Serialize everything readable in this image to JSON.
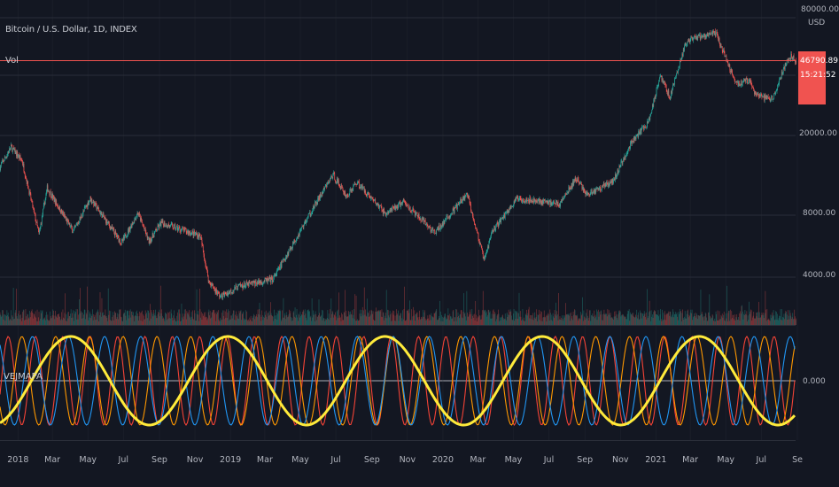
{
  "header": {
    "symbol_title": "Bitcoin / U.S. Dollar, 1D, INDEX",
    "volume_label": "Vol",
    "indicator_label": "VEJMAPA"
  },
  "price_scale": {
    "currency": "USD",
    "ticks": [
      "80000.00",
      "20000.00",
      "8000.00",
      "4000.00"
    ],
    "last_price": "46790.89",
    "countdown": "15:21:52"
  },
  "osc_scale": {
    "ticks": [
      "0.000"
    ]
  },
  "colors": {
    "background": "#131722",
    "grid": "#2a2e39",
    "up": "#26a69a",
    "down": "#ef5350",
    "price_line": "#f05350",
    "osc_yellow": "#ffeb3b",
    "osc_blue": "#2196f3",
    "osc_orange": "#ff9800",
    "osc_red": "#f44336",
    "zero_line": "#d1d4dc"
  },
  "chart_data": [
    {
      "type": "candlestick",
      "title": "Bitcoin / U.S. Dollar, 1D, INDEX",
      "yscale": "log",
      "ylim": [
        2500,
        80000
      ],
      "ylabel": "USD",
      "x_ticks": [
        "2018",
        "Mar",
        "May",
        "Jul",
        "Sep",
        "Nov",
        "2019",
        "Mar",
        "May",
        "Jul",
        "Sep",
        "Nov",
        "2020",
        "Mar",
        "May",
        "Jul",
        "Sep",
        "Nov",
        "2021",
        "Mar",
        "May",
        "Jul",
        "Se"
      ],
      "x_tick_dates": [
        "2018-01",
        "2018-03",
        "2018-05",
        "2018-07",
        "2018-09",
        "2018-11",
        "2019-01",
        "2019-03",
        "2019-05",
        "2019-07",
        "2019-09",
        "2019-11",
        "2020-01",
        "2020-03",
        "2020-05",
        "2020-07",
        "2020-09",
        "2020-11",
        "2021-01",
        "2021-03",
        "2021-05",
        "2021-07",
        "2021-09"
      ],
      "price_path": [
        [
          "2017-12-01",
          14000
        ],
        [
          "2017-12-20",
          17500
        ],
        [
          "2018-01-08",
          15000
        ],
        [
          "2018-02-06",
          6500
        ],
        [
          "2018-02-20",
          11000
        ],
        [
          "2018-04-06",
          6700
        ],
        [
          "2018-05-05",
          9800
        ],
        [
          "2018-06-28",
          5900
        ],
        [
          "2018-07-26",
          8300
        ],
        [
          "2018-08-14",
          6000
        ],
        [
          "2018-09-04",
          7400
        ],
        [
          "2018-11-10",
          6400
        ],
        [
          "2018-11-25",
          3800
        ],
        [
          "2018-12-15",
          3200
        ],
        [
          "2019-01-15",
          3600
        ],
        [
          "2019-03-15",
          3900
        ],
        [
          "2019-04-05",
          5000
        ],
        [
          "2019-05-15",
          8000
        ],
        [
          "2019-06-26",
          12800
        ],
        [
          "2019-07-20",
          10000
        ],
        [
          "2019-08-06",
          11800
        ],
        [
          "2019-09-25",
          8200
        ],
        [
          "2019-10-25",
          9400
        ],
        [
          "2019-12-18",
          6600
        ],
        [
          "2020-02-12",
          10300
        ],
        [
          "2020-03-12",
          4800
        ],
        [
          "2020-03-25",
          6700
        ],
        [
          "2020-05-08",
          9800
        ],
        [
          "2020-07-20",
          9200
        ],
        [
          "2020-08-17",
          12300
        ],
        [
          "2020-09-05",
          10200
        ],
        [
          "2020-10-20",
          12000
        ],
        [
          "2020-11-20",
          18500
        ],
        [
          "2020-12-20",
          23500
        ],
        [
          "2021-01-08",
          40000
        ],
        [
          "2021-01-25",
          31000
        ],
        [
          "2021-02-21",
          57000
        ],
        [
          "2021-03-13",
          61000
        ],
        [
          "2021-04-14",
          64000
        ],
        [
          "2021-05-19",
          36000
        ],
        [
          "2021-06-10",
          37500
        ],
        [
          "2021-06-22",
          31500
        ],
        [
          "2021-07-20",
          30000
        ],
        [
          "2021-08-14",
          47000
        ],
        [
          "2021-08-22",
          49500
        ],
        [
          "2021-08-30",
          46790
        ]
      ],
      "last_price": 46790.89
    },
    {
      "type": "line",
      "name": "VEJMAPA",
      "zero_line": 0.0,
      "ylim": [
        -1,
        1
      ],
      "series": [
        {
          "color": "#ffeb3b",
          "period_days": 270
        },
        {
          "color": "#2196f3",
          "period_days": 62
        },
        {
          "color": "#ff9800",
          "period_days": 58
        },
        {
          "color": "#f44336",
          "period_days": 47
        }
      ]
    }
  ]
}
